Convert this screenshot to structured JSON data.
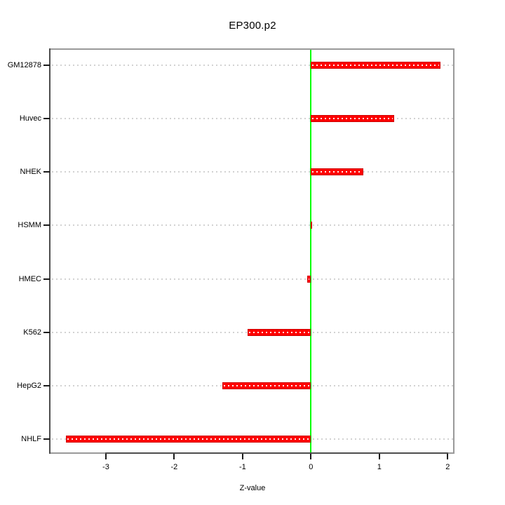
{
  "chart_data": {
    "type": "bar",
    "orientation": "horizontal",
    "title": "EP300.p2",
    "xlabel": "Z-value",
    "categories": [
      "GM12878",
      "Huvec",
      "NHEK",
      "HSMM",
      "HMEC",
      "K562",
      "HepG2",
      "NHLF"
    ],
    "values": [
      1.89,
      1.22,
      0.77,
      0.01,
      -0.05,
      -0.93,
      -1.3,
      -3.58
    ],
    "x_ticks": [
      -3,
      -2,
      -1,
      0,
      1,
      2
    ],
    "xlim": [
      -3.81,
      2.1
    ],
    "zero_reference_line": 0,
    "grid": "dotted horizontal per category",
    "legend": "none",
    "colors": {
      "bar_fill": "#ff0000",
      "bar_border": "#cf0000",
      "bar_inner_dots": "#ffffff",
      "zero_line": "#00ff00",
      "gridline": "#d2d2d2",
      "box_border": "#9a9a9a",
      "axis_dark": "#4d4d4d",
      "tick": "#1a1a1a",
      "text": "#000000",
      "background": "#ffffff"
    }
  }
}
